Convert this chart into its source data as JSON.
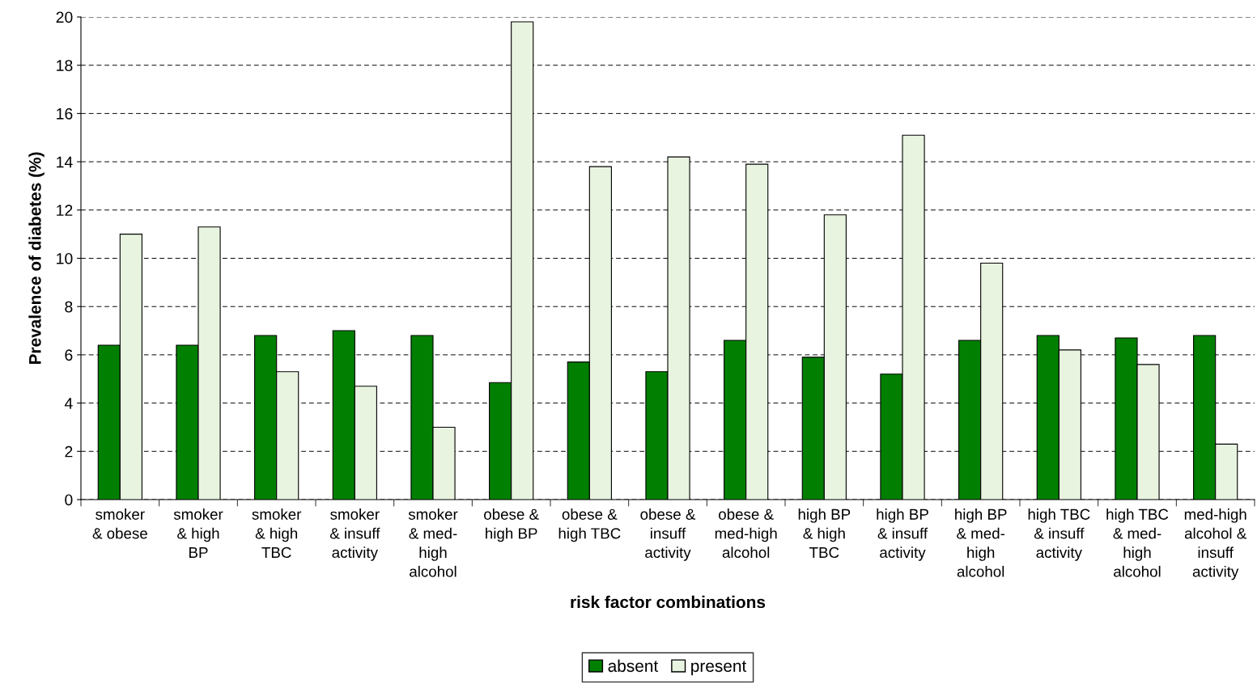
{
  "chart_data": {
    "type": "bar",
    "xlabel": "risk factor combinations",
    "ylabel": "Prevalence of diabetes (%)",
    "categories": [
      "smoker\n& obese",
      "smoker\n& high\nBP",
      "smoker\n& high\nTBC",
      "smoker\n& insuff\nactivity",
      "smoker\n& med-\nhigh\nalcohol",
      "obese &\nhigh BP",
      "obese &\nhigh TBC",
      "obese &\ninsuff\nactivity",
      "obese &\nmed-high\nalcohol",
      "high BP\n& high\nTBC",
      "high BP\n& insuff\nactivity",
      "high BP\n& med-\nhigh\nalcohol",
      "high TBC\n& insuff\nactivity",
      "high TBC\n& med-\nhigh\nalcohol",
      "med-high\nalcohol &\ninsuff\nactivity"
    ],
    "series": [
      {
        "name": "absent",
        "color": "#007f00",
        "values": [
          6.4,
          6.4,
          6.8,
          7.0,
          6.8,
          4.85,
          5.7,
          5.3,
          6.6,
          5.9,
          5.2,
          6.6,
          6.8,
          6.7,
          6.8
        ]
      },
      {
        "name": "present",
        "color": "#e8f4e0",
        "values": [
          11.0,
          11.3,
          5.3,
          4.7,
          3.0,
          19.8,
          13.8,
          14.2,
          13.9,
          11.8,
          15.1,
          9.8,
          6.2,
          5.6,
          2.3
        ]
      }
    ],
    "ylim": [
      0,
      20
    ],
    "yticks": [
      0,
      2,
      4,
      6,
      8,
      10,
      12,
      14,
      16,
      18,
      20
    ],
    "grid": "y",
    "legend": "bottom"
  }
}
